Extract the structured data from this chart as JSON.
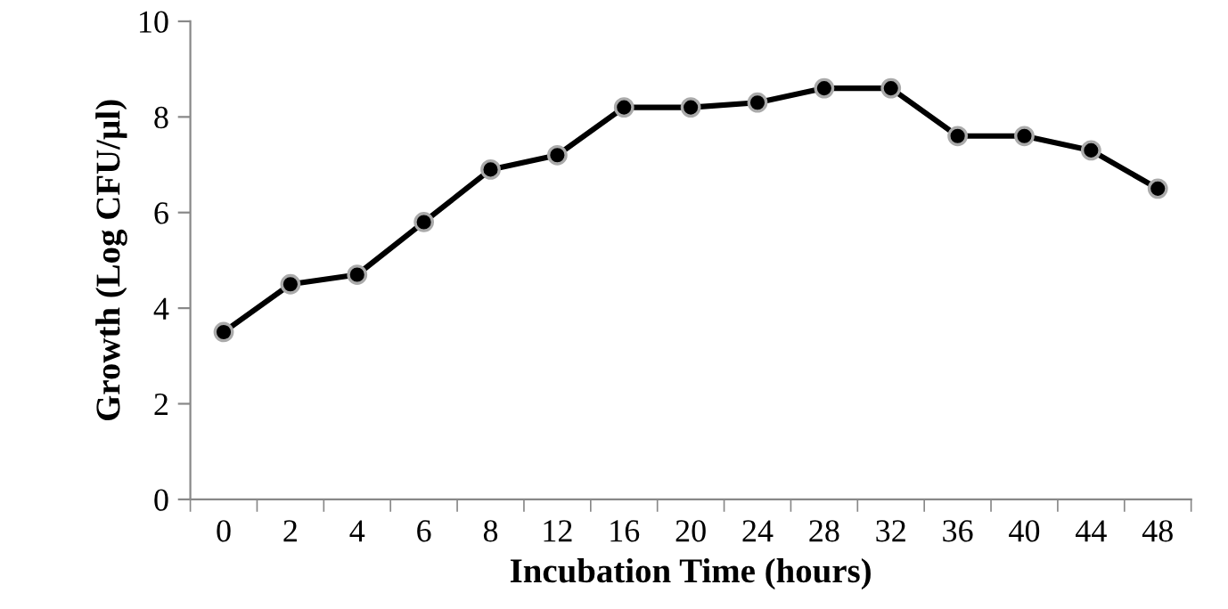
{
  "chart_data": {
    "type": "line",
    "xlabel": "Incubation Time (hours)",
    "ylabel": "Growth (Log CFU/µl)",
    "categories": [
      "0",
      "2",
      "4",
      "6",
      "8",
      "12",
      "16",
      "20",
      "24",
      "28",
      "32",
      "36",
      "40",
      "44",
      "48"
    ],
    "series": [
      {
        "color": "#000000",
        "values": [
          3.5,
          4.5,
          4.7,
          5.8,
          6.9,
          7.2,
          8.2,
          8.2,
          8.3,
          8.6,
          8.6,
          7.6,
          7.6,
          7.3,
          6.5
        ]
      }
    ],
    "ylim": [
      0,
      10
    ],
    "yticks": [
      0,
      2,
      4,
      6,
      8,
      10
    ],
    "grid": false,
    "legend": false,
    "marker": "circle",
    "line_style": "solid"
  }
}
